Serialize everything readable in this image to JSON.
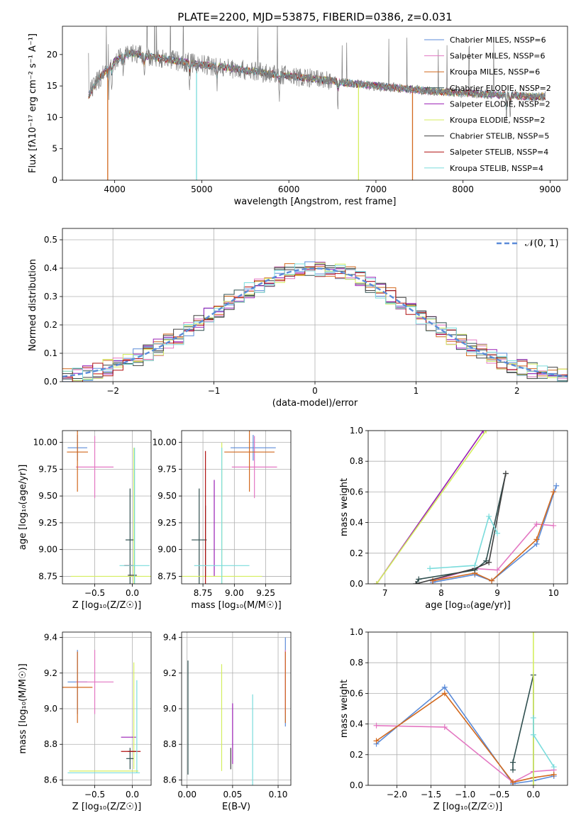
{
  "colors": {
    "chabrier_miles": "#5b8bd8",
    "salpeter_miles": "#e377c2",
    "kroupa_miles": "#d2691e",
    "chabrier_elodie": "#2f4f4f",
    "salpeter_elodie": "#9a1fb5",
    "kroupa_elodie": "#d4ee5e",
    "chabrier_stelib": "#404040",
    "salpeter_stelib": "#b01010",
    "kroupa_stelib": "#7adcdc",
    "gaussian": "#5b8bd8",
    "data": "#7f7f7f"
  },
  "chart_data": [
    {
      "id": "spectrum",
      "type": "line",
      "title": "PLATE=2200, MJD=53875, FIBERID=0386, z=0.031",
      "xlabel": "wavelength [Angstrom, rest frame]",
      "ylabel": "Flux [fλ10⁻¹⁷ erg cm⁻² s⁻¹ A⁻¹]",
      "xlim": [
        3400,
        9200
      ],
      "ylim": [
        0,
        24.5
      ],
      "xticks": [
        4000,
        5000,
        6000,
        7000,
        8000,
        9000
      ],
      "yticks": [
        0,
        5,
        10,
        15,
        20
      ],
      "legend": [
        "Chabrier MILES, NSSP=6",
        "Salpeter MILES, NSSP=6",
        "Kroupa MILES, NSSP=6",
        "Chabrier ELODIE, NSSP=2",
        "Salpeter ELODIE, NSSP=2",
        "Kroupa ELODIE, NSSP=2",
        "Chabrier STELIB, NSSP=5",
        "Salpeter STELIB, NSSP=4",
        "Kroupa STELIB, NSSP=4"
      ],
      "legend_loc": "upper right",
      "continuum_x": [
        3700,
        3800,
        3900,
        4000,
        4100,
        4200,
        4400,
        4700,
        5000,
        5300,
        5600,
        6000,
        6300,
        6600,
        7000,
        7300,
        7600,
        8000,
        8400,
        8800
      ],
      "continuum_y": [
        13.5,
        15.8,
        17.5,
        18.9,
        19.8,
        20.2,
        19.7,
        19.0,
        18.4,
        17.9,
        17.3,
        16.6,
        16.1,
        15.6,
        15.0,
        14.6,
        14.2,
        13.9,
        13.6,
        13.3
      ],
      "model_drops": [
        {
          "x": 3920,
          "series": 2
        },
        {
          "x": 4940,
          "series": 8
        },
        {
          "x": 6800,
          "series": 5
        },
        {
          "x": 7420,
          "series": 2
        }
      ]
    },
    {
      "id": "residuals",
      "type": "histogram",
      "xlabel": "(data-model)/error",
      "ylabel": "Normed distribution",
      "xlim": [
        -2.5,
        2.5
      ],
      "ylim": [
        0,
        0.54
      ],
      "xticks": [
        -2,
        -1,
        0,
        1,
        2
      ],
      "yticks": [
        0.0,
        0.1,
        0.2,
        0.3,
        0.4,
        0.5
      ],
      "legend": [
        "𝒩(0, 1)"
      ],
      "legend_loc": "upper right",
      "bin_width": 0.1
    },
    {
      "id": "age_vs_z",
      "type": "errorbar",
      "xlabel": "Z [log₁₀(Z/Z☉)]",
      "ylabel": "age  [log₁₀(age/yr)]",
      "xlim": [
        -0.93,
        0.25
      ],
      "ylim": [
        8.68,
        10.11
      ],
      "xticks": [
        -0.5,
        0.0
      ],
      "yticks": [
        8.75,
        9.0,
        9.25,
        9.5,
        9.75,
        10.0
      ],
      "points": [
        {
          "s": 0,
          "x": -0.73,
          "y": 9.95,
          "xe": 0.13,
          "ye": 0.12
        },
        {
          "s": 1,
          "x": -0.5,
          "y": 9.77,
          "xe": 0.25,
          "ye": 0.29
        },
        {
          "s": 2,
          "x": -0.73,
          "y": 9.91,
          "xe": 0.14,
          "ye": 0.37
        },
        {
          "s": 3,
          "x": -0.03,
          "y": 9.09,
          "xe": 0.06,
          "ye": 0.48
        },
        {
          "s": 4,
          "x": -0.05,
          "y": 8.85,
          "xe": 0.05,
          "ye": 0.0
        },
        {
          "s": 5,
          "x": 0.02,
          "y": 8.75,
          "xe": 0.84,
          "ye": 1.2
        },
        {
          "s": 6,
          "x": 0.0,
          "y": 8.76,
          "xe": 0.06,
          "ye": 0.0
        },
        {
          "s": 7,
          "x": -0.05,
          "y": 8.85,
          "xe": 0.06,
          "ye": 0.0
        },
        {
          "s": 8,
          "x": 0.03,
          "y": 8.85,
          "xe": 0.2,
          "ye": 1.1
        }
      ]
    },
    {
      "id": "age_vs_mass",
      "type": "errorbar",
      "xlabel": "mass [log₁₀(M/M☉)]",
      "ylabel": "",
      "xlim": [
        8.58,
        9.45
      ],
      "ylim": [
        8.68,
        10.11
      ],
      "xticks": [
        8.75,
        9.0,
        9.25
      ],
      "yticks": [
        8.75,
        9.0,
        9.25,
        9.5,
        9.75,
        10.0
      ],
      "points": [
        {
          "s": 0,
          "x": 9.15,
          "y": 9.95,
          "xe": 0.18,
          "ye": 0.12
        },
        {
          "s": 1,
          "x": 9.16,
          "y": 9.77,
          "xe": 0.18,
          "ye": 0.29
        },
        {
          "s": 2,
          "x": 9.12,
          "y": 9.91,
          "xe": 0.2,
          "ye": 0.37
        },
        {
          "s": 3,
          "x": 8.72,
          "y": 9.09,
          "xe": 0.06,
          "ye": 0.48
        },
        {
          "s": 4,
          "x": 8.84,
          "y": 9.2,
          "xe": 0.0,
          "ye": 0.45
        },
        {
          "s": 5,
          "x": 8.9,
          "y": 8.75,
          "xe": 0.32,
          "ye": 1.25
        },
        {
          "s": 6,
          "x": 8.77,
          "y": 9.08,
          "xe": 0.0,
          "ye": 0.33
        },
        {
          "s": 7,
          "x": 8.77,
          "y": 9.0,
          "xe": 0.0,
          "ye": 0.92
        },
        {
          "s": 8,
          "x": 8.9,
          "y": 8.85,
          "xe": 0.22,
          "ye": 1.1
        }
      ]
    },
    {
      "id": "weight_vs_age",
      "type": "line",
      "xlabel": "age  [log₁₀(age/yr)]",
      "ylabel": "mass weight",
      "xlim": [
        6.7,
        10.25
      ],
      "ylim": [
        0,
        1.0
      ],
      "xticks": [
        7,
        8,
        9,
        10
      ],
      "yticks": [
        0.0,
        0.2,
        0.4,
        0.6,
        0.8,
        1.0
      ],
      "series": [
        {
          "s": 0,
          "x": [
            7.85,
            8.6,
            8.9,
            9.7,
            10.05
          ],
          "y": [
            0.01,
            0.06,
            0.02,
            0.26,
            0.64
          ]
        },
        {
          "s": 1,
          "x": [
            7.85,
            8.6,
            9.0,
            9.7,
            10.0
          ],
          "y": [
            0.02,
            0.1,
            0.09,
            0.39,
            0.38
          ]
        },
        {
          "s": 2,
          "x": [
            7.85,
            8.6,
            8.9,
            9.7,
            10.0
          ],
          "y": [
            0.02,
            0.07,
            0.02,
            0.29,
            0.6
          ]
        },
        {
          "s": 3,
          "x": [
            7.55,
            7.6,
            8.6,
            8.8,
            9.15
          ],
          "y": [
            0.0,
            0.03,
            0.09,
            0.15,
            0.72
          ]
        },
        {
          "s": 4,
          "x": [
            6.85,
            8.75
          ],
          "y": [
            0.0,
            1.0
          ]
        },
        {
          "s": 5,
          "x": [
            6.85,
            8.8
          ],
          "y": [
            0.0,
            1.0
          ]
        },
        {
          "s": 6,
          "x": [
            7.55,
            8.6,
            8.85,
            9.15
          ],
          "y": [
            0.0,
            0.1,
            0.14,
            0.72
          ]
        },
        {
          "s": 8,
          "x": [
            7.8,
            8.6,
            8.85,
            9.0
          ],
          "y": [
            0.1,
            0.12,
            0.44,
            0.33
          ]
        }
      ]
    },
    {
      "id": "mass_vs_z",
      "type": "errorbar",
      "xlabel": "Z [log₁₀(Z/Z☉)]",
      "ylabel": "mass [log₁₀(M/M☉)]",
      "xlim": [
        -0.93,
        0.25
      ],
      "ylim": [
        8.57,
        9.43
      ],
      "xticks": [
        -0.5,
        0.0
      ],
      "yticks": [
        8.6,
        8.8,
        9.0,
        9.2,
        9.4
      ],
      "points": [
        {
          "s": 0,
          "x": -0.73,
          "y": 9.15,
          "xe": 0.13,
          "ye": 0.18
        },
        {
          "s": 1,
          "x": -0.5,
          "y": 9.15,
          "xe": 0.25,
          "ye": 0.18
        },
        {
          "s": 2,
          "x": -0.73,
          "y": 9.12,
          "xe": 0.2,
          "ye": 0.2
        },
        {
          "s": 3,
          "x": -0.03,
          "y": 8.72,
          "xe": 0.05,
          "ye": 0.06
        },
        {
          "s": 4,
          "x": -0.05,
          "y": 8.84,
          "xe": 0.1,
          "ye": 0.0
        },
        {
          "s": 5,
          "x": 0.02,
          "y": 8.96,
          "xe": 0.0,
          "ye": 0.3
        },
        {
          "s": 6,
          "x": 0.0,
          "y": 8.76,
          "xe": 0.06,
          "ye": 0.0
        },
        {
          "s": 7,
          "x": -0.02,
          "y": 8.76,
          "xe": 0.13,
          "ye": 0.0
        },
        {
          "s": 8,
          "x": 0.06,
          "y": 8.9,
          "xe": 0.0,
          "ye": 0.26
        },
        {
          "s": 5,
          "x": -0.38,
          "y": 8.65,
          "xe": 0.46,
          "ye": 0.0
        },
        {
          "s": 8,
          "x": -0.38,
          "y": 8.64,
          "xe": 0.48,
          "ye": 0.0
        }
      ]
    },
    {
      "id": "mass_vs_ebv",
      "type": "errorbar",
      "xlabel": "E(B-V)",
      "ylabel": "",
      "xlim": [
        -0.006,
        0.114
      ],
      "ylim": [
        8.57,
        9.43
      ],
      "xticks": [
        0.0,
        0.05,
        0.1
      ],
      "yticks": [
        8.6,
        8.8,
        9.0,
        9.2,
        9.4
      ],
      "points": [
        {
          "s": 0,
          "x": 0.108,
          "y": 9.15,
          "xe": 0.0,
          "ye": 0.25
        },
        {
          "s": 1,
          "x": 0.108,
          "y": 9.15,
          "xe": 0.0,
          "ye": 0.18
        },
        {
          "s": 2,
          "x": 0.108,
          "y": 9.12,
          "xe": 0.0,
          "ye": 0.2
        },
        {
          "s": 3,
          "x": 0.001,
          "y": 8.95,
          "xe": 0.0,
          "ye": 0.32
        },
        {
          "s": 4,
          "x": 0.05,
          "y": 8.86,
          "xe": 0.0,
          "ye": 0.17
        },
        {
          "s": 5,
          "x": 0.038,
          "y": 8.95,
          "xe": 0.0,
          "ye": 0.3
        },
        {
          "s": 6,
          "x": 0.048,
          "y": 8.72,
          "xe": 0.0,
          "ye": 0.06
        },
        {
          "s": 7,
          "x": 0.048,
          "y": 8.72,
          "xe": 0.0,
          "ye": 0.0
        },
        {
          "s": 8,
          "x": 0.072,
          "y": 8.82,
          "xe": 0.0,
          "ye": 0.26
        }
      ]
    },
    {
      "id": "weight_vs_z",
      "type": "line",
      "xlabel": "Z [log₁₀(Z/Z☉)]",
      "ylabel": "mass weight",
      "xlim": [
        -2.42,
        0.5
      ],
      "ylim": [
        0,
        1.0
      ],
      "xticks": [
        -2.0,
        -1.5,
        -1.0,
        -0.5,
        0.0
      ],
      "yticks": [
        0.0,
        0.2,
        0.4,
        0.6,
        0.8,
        1.0
      ],
      "series": [
        {
          "s": 0,
          "x": [
            -2.3,
            -1.3,
            -0.3,
            0.0,
            0.3
          ],
          "y": [
            0.27,
            0.64,
            0.01,
            0.03,
            0.06
          ]
        },
        {
          "s": 1,
          "x": [
            -2.3,
            -1.3,
            -0.3,
            0.0,
            0.3
          ],
          "y": [
            0.39,
            0.38,
            0.02,
            0.09,
            0.1
          ]
        },
        {
          "s": 2,
          "x": [
            -2.3,
            -1.3,
            -0.3,
            0.0,
            0.3
          ],
          "y": [
            0.29,
            0.6,
            0.02,
            0.05,
            0.07
          ]
        },
        {
          "s": 3,
          "x": [
            -0.3,
            -0.3,
            0.0,
            0.0
          ],
          "y": [
            0.1,
            0.15,
            0.72,
            0.0
          ]
        },
        {
          "s": 5,
          "x": [
            0.0,
            0.0
          ],
          "y": [
            0.0,
            1.0
          ]
        },
        {
          "s": 8,
          "x": [
            0.0,
            0.0,
            0.3
          ],
          "y": [
            0.44,
            0.33,
            0.12
          ]
        }
      ]
    }
  ]
}
